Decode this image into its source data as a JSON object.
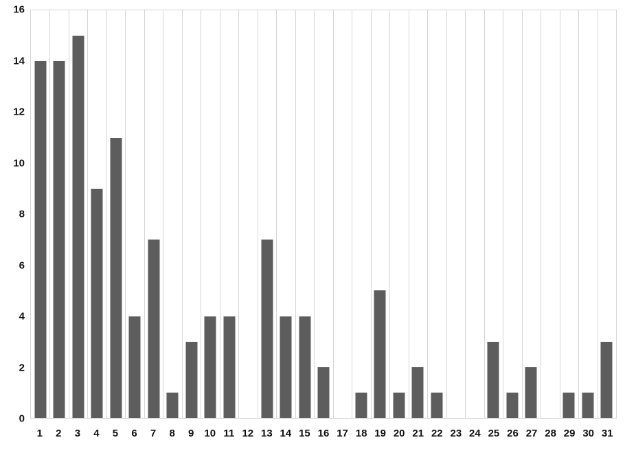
{
  "chart_data": {
    "type": "bar",
    "title": "",
    "xlabel": "",
    "ylabel": "",
    "categories": [
      "1",
      "2",
      "3",
      "4",
      "5",
      "6",
      "7",
      "8",
      "9",
      "10",
      "11",
      "12",
      "13",
      "14",
      "15",
      "16",
      "17",
      "18",
      "19",
      "20",
      "21",
      "22",
      "23",
      "24",
      "25",
      "26",
      "27",
      "28",
      "29",
      "30",
      "31"
    ],
    "values": [
      14,
      14,
      15,
      9,
      11,
      4,
      7,
      1,
      3,
      4,
      4,
      0,
      7,
      4,
      4,
      2,
      0,
      1,
      5,
      1,
      2,
      1,
      0,
      0,
      3,
      1,
      2,
      0,
      1,
      1,
      3
    ],
    "ylim": [
      0,
      16
    ],
    "yticks": [
      0,
      2,
      4,
      6,
      8,
      10,
      12,
      14,
      16
    ],
    "grid": "vertical",
    "legend": "none",
    "bar_color": "#5d5d5d",
    "gridline_color": "#d6d6d6",
    "axis_label_color": "#111111",
    "background_color": "#ffffff"
  }
}
